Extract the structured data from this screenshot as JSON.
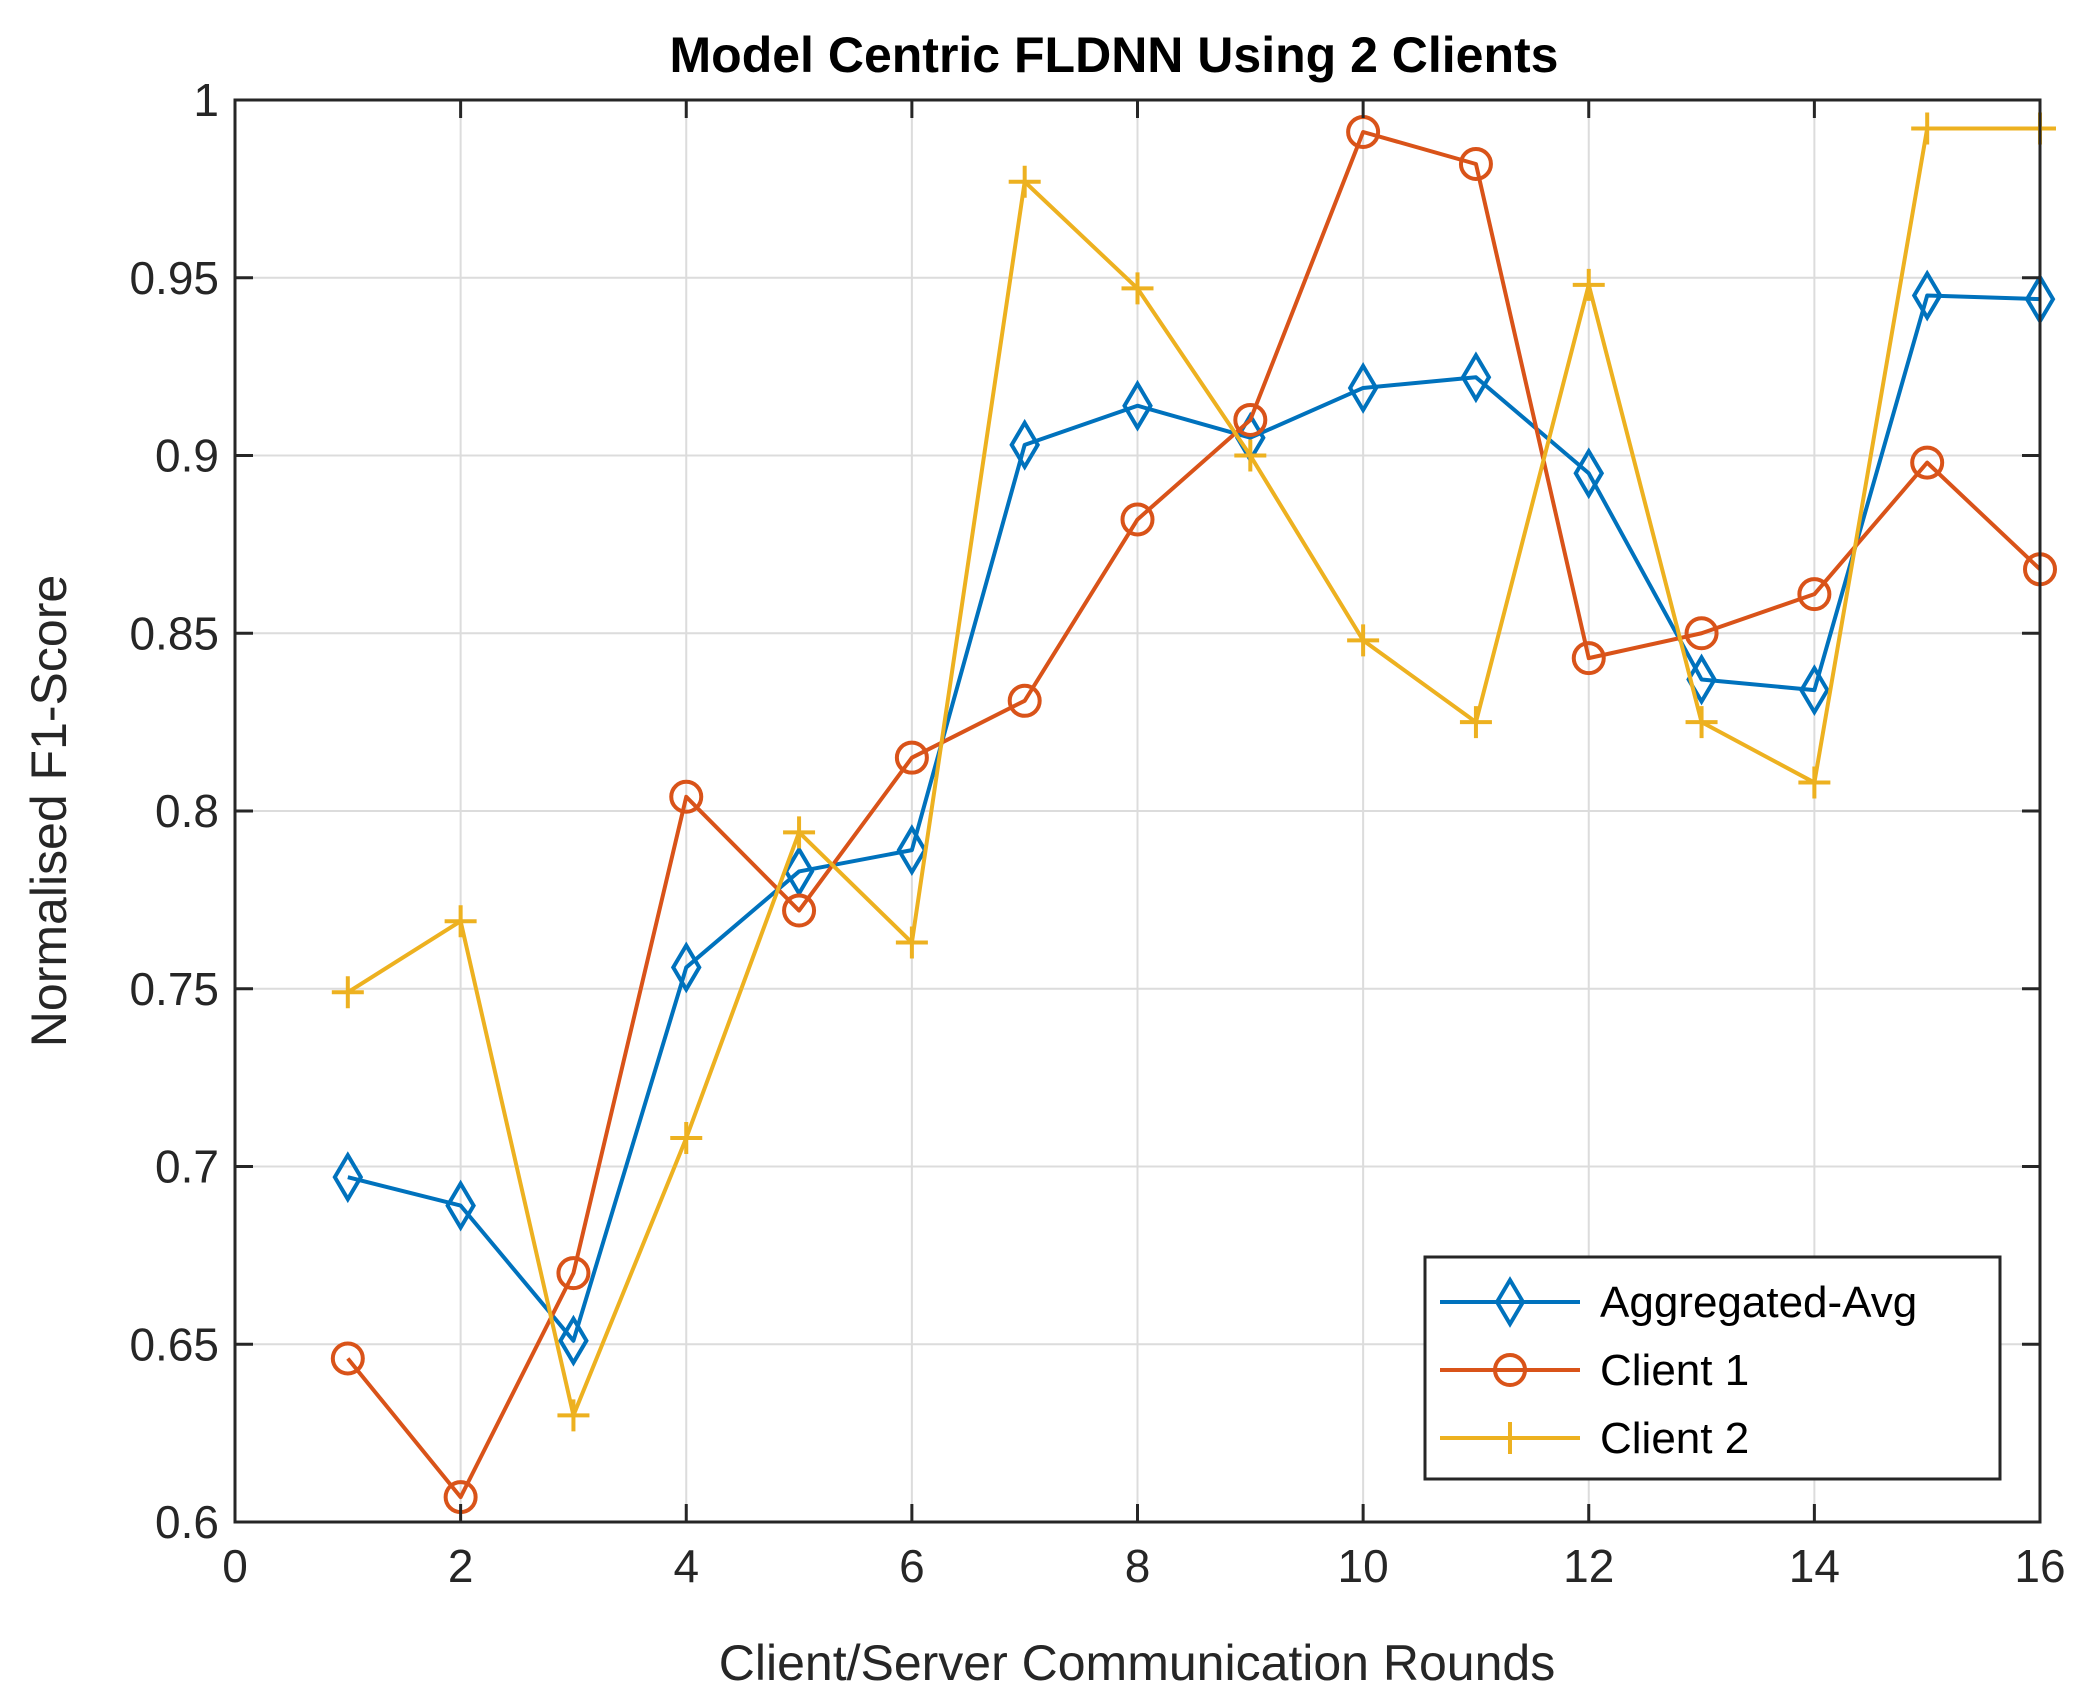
{
  "chart_data": {
    "type": "line",
    "title": "Model Centric FLDNN Using 2 Clients",
    "xlabel": "Client/Server Communication Rounds",
    "ylabel": "Normalised F1-Score",
    "xlim": [
      0,
      16
    ],
    "ylim": [
      0.6,
      1
    ],
    "xticks": [
      0,
      2,
      4,
      6,
      8,
      10,
      12,
      14,
      16
    ],
    "xtick_labels": [
      "0",
      "2",
      "4",
      "6",
      "8",
      "10",
      "12",
      "14",
      "16"
    ],
    "yticks": [
      0.6,
      0.65,
      0.7,
      0.75,
      0.8,
      0.85,
      0.9,
      0.95,
      1
    ],
    "ytick_labels": [
      "0.6",
      "0.65",
      "0.7",
      "0.75",
      "0.8",
      "0.85",
      "0.9",
      "0.95",
      "1"
    ],
    "grid": true,
    "legend_position": "bottom-right",
    "x": [
      1,
      2,
      3,
      4,
      5,
      6,
      7,
      8,
      9,
      10,
      11,
      12,
      13,
      14,
      15,
      16
    ],
    "series": [
      {
        "name": "Aggregated-Avg",
        "color": "#0072BD",
        "marker": "diamond",
        "values": [
          0.697,
          0.689,
          0.651,
          0.756,
          0.783,
          0.789,
          0.903,
          0.914,
          0.905,
          0.919,
          0.922,
          0.895,
          0.837,
          0.834,
          0.945,
          0.944
        ]
      },
      {
        "name": "Client 1",
        "color": "#D95319",
        "marker": "circle",
        "values": [
          0.646,
          0.607,
          0.67,
          0.804,
          0.772,
          0.815,
          0.831,
          0.882,
          0.91,
          0.991,
          0.982,
          0.843,
          0.85,
          0.861,
          0.898,
          0.868
        ]
      },
      {
        "name": "Client 2",
        "color": "#EDB120",
        "marker": "plus",
        "values": [
          0.749,
          0.769,
          0.63,
          0.708,
          0.794,
          0.763,
          0.977,
          0.947,
          0.9,
          0.848,
          0.825,
          0.948,
          0.825,
          0.808,
          0.992,
          0.992
        ]
      }
    ]
  }
}
